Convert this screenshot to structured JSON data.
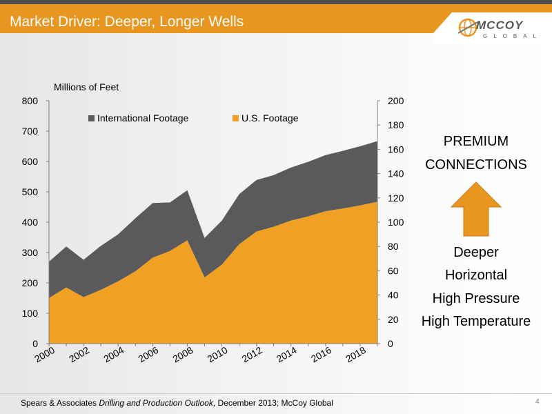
{
  "header": {
    "title": "Market Driver: Deeper, Longer Wells",
    "logo_word": "MCCOY",
    "logo_sub": "GLOBAL"
  },
  "colors": {
    "us_footage": "#F0A022",
    "international_footage": "#5A5A5C",
    "header_bar": "#E8961F",
    "arrow": "#E8961F"
  },
  "chart_data": {
    "type": "area",
    "stacked": true,
    "ylabel": "Millions of Feet",
    "ylim": [
      0,
      800
    ],
    "yticks": [
      0,
      100,
      200,
      300,
      400,
      500,
      600,
      700,
      800
    ],
    "y2lim": [
      0,
      200
    ],
    "y2ticks": [
      0,
      20,
      40,
      60,
      80,
      100,
      120,
      140,
      160,
      180,
      200
    ],
    "x": [
      2000,
      2001,
      2002,
      2003,
      2004,
      2005,
      2006,
      2007,
      2008,
      2009,
      2010,
      2011,
      2012,
      2013,
      2014,
      2015,
      2016,
      2017,
      2018,
      2019
    ],
    "xtick_labels": [
      "2000",
      "2002",
      "2004",
      "2006",
      "2008",
      "2010",
      "2012",
      "2014",
      "2016",
      "2018"
    ],
    "legend_position": "top",
    "series": [
      {
        "name": "International Footage",
        "values": [
          120,
          135,
          123,
          145,
          155,
          175,
          180,
          160,
          165,
          130,
          145,
          165,
          170,
          170,
          175,
          180,
          185,
          190,
          195,
          200
        ]
      },
      {
        "name": "U.S. Footage",
        "values": [
          150,
          185,
          153,
          177,
          205,
          238,
          283,
          305,
          340,
          218,
          260,
          327,
          369,
          385,
          405,
          419,
          436,
          445,
          455,
          467
        ]
      }
    ]
  },
  "side_panel": {
    "line1": "PREMIUM",
    "line2": "CONNECTIONS",
    "items": [
      "Deeper",
      "Horizontal",
      "High Pressure",
      "High Temperature"
    ]
  },
  "footer": {
    "source_prefix": "Spears & Associates ",
    "source_title": "Drilling and Production Outlook",
    "source_suffix": ", December 2013; McCoy Global",
    "page_number": "4"
  }
}
